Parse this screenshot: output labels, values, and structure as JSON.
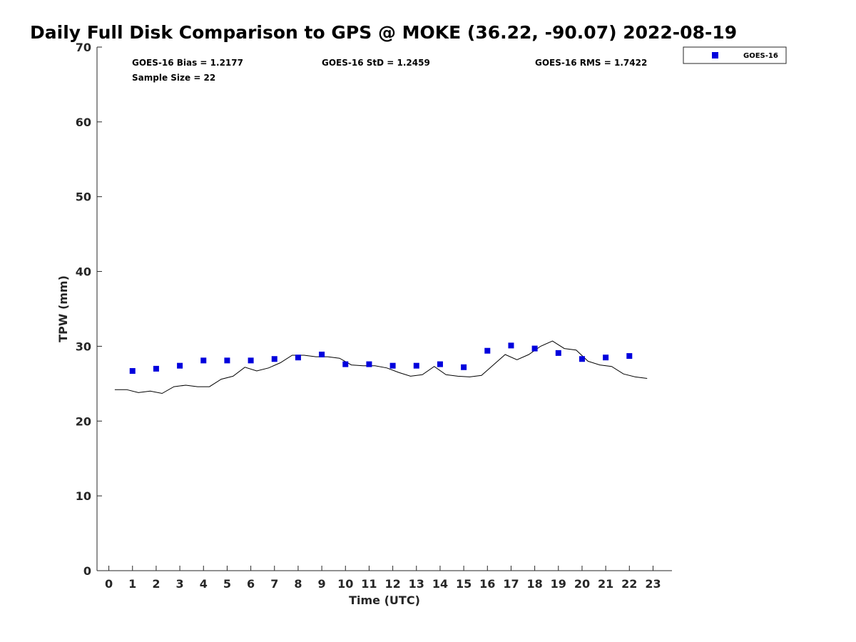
{
  "chart_data": {
    "type": "scatter",
    "title": "Daily Full Disk Comparison to GPS @ MOKE (36.22, -90.07) 2022-08-19",
    "xlabel": "Time (UTC)",
    "ylabel": "TPW (mm)",
    "xlim": [
      -0.5,
      23.8
    ],
    "ylim": [
      0,
      70
    ],
    "xticks": [
      "0",
      "1",
      "2",
      "3",
      "4",
      "5",
      "6",
      "7",
      "8",
      "9",
      "10",
      "11",
      "12",
      "13",
      "14",
      "15",
      "16",
      "17",
      "18",
      "19",
      "20",
      "21",
      "22",
      "23"
    ],
    "yticks": [
      "0",
      "10",
      "20",
      "30",
      "40",
      "50",
      "60",
      "70"
    ],
    "stats": {
      "bias": "GOES-16 Bias = 1.2177",
      "std": "GOES-16 StD = 1.2459",
      "rms": "GOES-16 RMS = 1.7422",
      "sample": "Sample Size = 22"
    },
    "legend": {
      "position": "top-right (outside axes)",
      "entries": [
        "GOES-16"
      ]
    },
    "colors": {
      "goes": "#0000dd",
      "gps": "#000000"
    },
    "series": [
      {
        "name": "GOES-16",
        "marker": "square",
        "x": [
          1,
          2,
          3,
          4,
          5,
          6,
          7,
          8,
          9,
          10,
          11,
          12,
          13,
          14,
          15,
          16,
          17,
          18,
          19,
          20,
          21,
          22
        ],
        "y": [
          26.7,
          27.0,
          27.4,
          28.1,
          28.1,
          28.1,
          28.3,
          28.5,
          28.9,
          27.6,
          27.6,
          27.4,
          27.4,
          27.6,
          27.2,
          29.4,
          30.1,
          29.7,
          29.1,
          28.3,
          28.5,
          28.7
        ]
      },
      {
        "marker": "line",
        "x": [
          0.25,
          0.75,
          1.25,
          1.75,
          2.25,
          2.75,
          3.25,
          3.75,
          4.25,
          4.75,
          5.25,
          5.75,
          6.25,
          6.75,
          7.25,
          7.75,
          8.25,
          8.75,
          9.25,
          9.75,
          10.25,
          10.75,
          11.25,
          11.75,
          12.25,
          12.75,
          13.25,
          13.75,
          14.25,
          14.75,
          15.25,
          15.75,
          16.25,
          16.75,
          17.25,
          17.75,
          18.25,
          18.75,
          19.25,
          19.75,
          20.25,
          20.75,
          21.25,
          21.75,
          22.25,
          22.75
        ],
        "y": [
          24.2,
          24.2,
          23.8,
          24.0,
          23.7,
          24.6,
          24.8,
          24.6,
          24.6,
          25.6,
          26.0,
          27.2,
          26.7,
          27.1,
          27.8,
          28.8,
          28.8,
          28.6,
          28.6,
          28.4,
          27.5,
          27.4,
          27.4,
          27.1,
          26.5,
          26.0,
          26.2,
          27.3,
          26.2,
          26.0,
          25.9,
          26.1,
          27.5,
          28.9,
          28.2,
          28.9,
          30.0,
          30.7,
          29.7,
          29.5,
          28.0,
          27.5,
          27.3,
          26.3,
          25.9,
          25.7
        ]
      }
    ]
  }
}
